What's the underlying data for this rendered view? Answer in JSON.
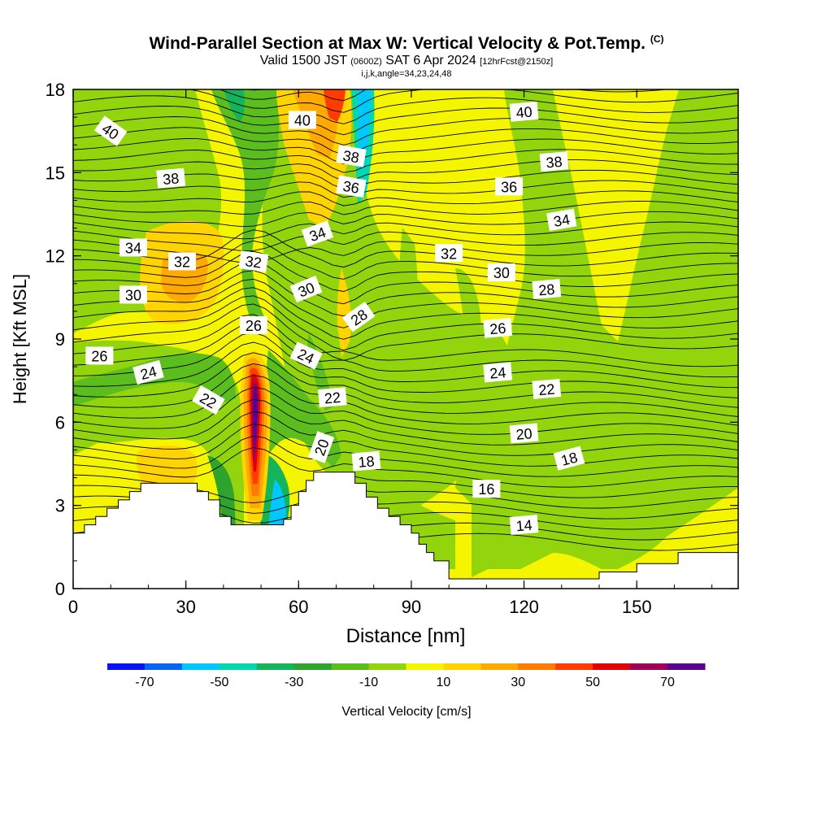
{
  "chart_data": {
    "type": "heatmap",
    "title": "Wind-Parallel Section at Max W: Vertical Velocity & Pot.Temp.",
    "title_mark": "(C)",
    "subtitle_parts": {
      "valid": "Valid 1500 JST",
      "utc": "(0600Z)",
      "date": "SAT 6 Apr 2024",
      "forecast": "[12hrFcst@2150z]"
    },
    "subtitle2": "i,j,k,angle=34,23,24,48",
    "xlabel": "Distance [nm]",
    "ylabel": "Height [Kft MSL]",
    "xlim": [
      0,
      177
    ],
    "ylim": [
      0,
      18
    ],
    "xticks": [
      0,
      30,
      60,
      90,
      120,
      150
    ],
    "yticks": [
      0,
      3,
      6,
      9,
      12,
      15,
      18
    ],
    "colorbar": {
      "label": "Vertical Velocity [cm/s]",
      "tick_labels": [
        "-70",
        "-50",
        "-30",
        "-10",
        "10",
        "30",
        "50",
        "70"
      ],
      "tick_values": [
        -70,
        -50,
        -30,
        -10,
        10,
        30,
        50,
        70
      ],
      "colors": [
        "#0a14f0",
        "#0a64f0",
        "#00c8ff",
        "#00d8b0",
        "#13b45a",
        "#2ea32e",
        "#5cbd1e",
        "#92d50c",
        "#f6f500",
        "#ffd400",
        "#ffaa00",
        "#ff7a00",
        "#ff3c00",
        "#e00008",
        "#a0005a",
        "#5a0090"
      ]
    },
    "contour_labels": [
      {
        "text": "40",
        "x": 10,
        "y": 16.5,
        "angle": 35
      },
      {
        "text": "40",
        "x": 61,
        "y": 16.9,
        "angle": 0
      },
      {
        "text": "40",
        "x": 120,
        "y": 17.2,
        "angle": -5
      },
      {
        "text": "38",
        "x": 26,
        "y": 14.8,
        "angle": -5
      },
      {
        "text": "38",
        "x": 74,
        "y": 15.6,
        "angle": 10
      },
      {
        "text": "38",
        "x": 128,
        "y": 15.4,
        "angle": -5
      },
      {
        "text": "36",
        "x": 74,
        "y": 14.5,
        "angle": 10
      },
      {
        "text": "36",
        "x": 116,
        "y": 14.5,
        "angle": 0
      },
      {
        "text": "34",
        "x": 16,
        "y": 12.3,
        "angle": 0
      },
      {
        "text": "34",
        "x": 65,
        "y": 12.8,
        "angle": -20
      },
      {
        "text": "34",
        "x": 130,
        "y": 13.3,
        "angle": -10
      },
      {
        "text": "32",
        "x": 29,
        "y": 11.8,
        "angle": 0
      },
      {
        "text": "32",
        "x": 48,
        "y": 11.8,
        "angle": 8
      },
      {
        "text": "32",
        "x": 100,
        "y": 12.1,
        "angle": 0
      },
      {
        "text": "30",
        "x": 16,
        "y": 10.6,
        "angle": 0
      },
      {
        "text": "30",
        "x": 62,
        "y": 10.8,
        "angle": -22
      },
      {
        "text": "30",
        "x": 114,
        "y": 11.4,
        "angle": 0
      },
      {
        "text": "28",
        "x": 76,
        "y": 9.8,
        "angle": -35
      },
      {
        "text": "28",
        "x": 126,
        "y": 10.8,
        "angle": -5
      },
      {
        "text": "26",
        "x": 7,
        "y": 8.4,
        "angle": 0
      },
      {
        "text": "26",
        "x": 48,
        "y": 9.5,
        "angle": 0
      },
      {
        "text": "26",
        "x": 113,
        "y": 9.4,
        "angle": -5
      },
      {
        "text": "24",
        "x": 20,
        "y": 7.8,
        "angle": -15
      },
      {
        "text": "24",
        "x": 62,
        "y": 8.4,
        "angle": 25
      },
      {
        "text": "24",
        "x": 113,
        "y": 7.8,
        "angle": -5
      },
      {
        "text": "22",
        "x": 36,
        "y": 6.8,
        "angle": 30
      },
      {
        "text": "22",
        "x": 69,
        "y": 6.9,
        "angle": -5
      },
      {
        "text": "22",
        "x": 126,
        "y": 7.2,
        "angle": -5
      },
      {
        "text": "20",
        "x": 66,
        "y": 5.1,
        "angle": -70
      },
      {
        "text": "20",
        "x": 120,
        "y": 5.6,
        "angle": -5
      },
      {
        "text": "18",
        "x": 78,
        "y": 4.6,
        "angle": -5
      },
      {
        "text": "18",
        "x": 132,
        "y": 4.7,
        "angle": -15
      },
      {
        "text": "16",
        "x": 110,
        "y": 3.6,
        "angle": 0
      },
      {
        "text": "14",
        "x": 120,
        "y": 2.3,
        "angle": -5
      }
    ],
    "terrain_top_heights": [
      [
        0,
        2.0
      ],
      [
        3,
        2.3
      ],
      [
        6,
        2.6
      ],
      [
        9,
        2.9
      ],
      [
        12,
        3.2
      ],
      [
        15,
        3.5
      ],
      [
        18,
        3.8
      ],
      [
        21,
        3.8
      ],
      [
        25,
        3.8
      ],
      [
        30,
        3.8
      ],
      [
        33,
        3.5
      ],
      [
        36,
        3.2
      ],
      [
        39,
        2.6
      ],
      [
        42,
        2.3
      ],
      [
        45,
        2.3
      ],
      [
        48,
        2.3
      ],
      [
        51,
        2.3
      ],
      [
        54,
        2.3
      ],
      [
        56,
        2.5
      ],
      [
        58,
        3.0
      ],
      [
        60,
        3.5
      ],
      [
        62,
        3.9
      ],
      [
        64,
        4.2
      ],
      [
        67,
        4.2
      ],
      [
        70,
        4.2
      ],
      [
        73,
        4.2
      ],
      [
        75,
        3.8
      ],
      [
        78,
        3.3
      ],
      [
        81,
        2.9
      ],
      [
        84,
        2.6
      ],
      [
        87,
        2.3
      ],
      [
        90,
        2.0
      ],
      [
        92,
        1.6
      ],
      [
        94,
        1.3
      ],
      [
        96,
        1.0
      ],
      [
        100,
        0.35
      ],
      [
        110,
        0.35
      ],
      [
        120,
        0.35
      ],
      [
        130,
        0.35
      ],
      [
        138,
        0.35
      ],
      [
        140,
        0.6
      ],
      [
        145,
        0.6
      ],
      [
        149,
        0.6
      ],
      [
        150,
        0.9
      ],
      [
        160,
        0.9
      ],
      [
        161,
        1.3
      ],
      [
        177,
        1.3
      ]
    ]
  }
}
